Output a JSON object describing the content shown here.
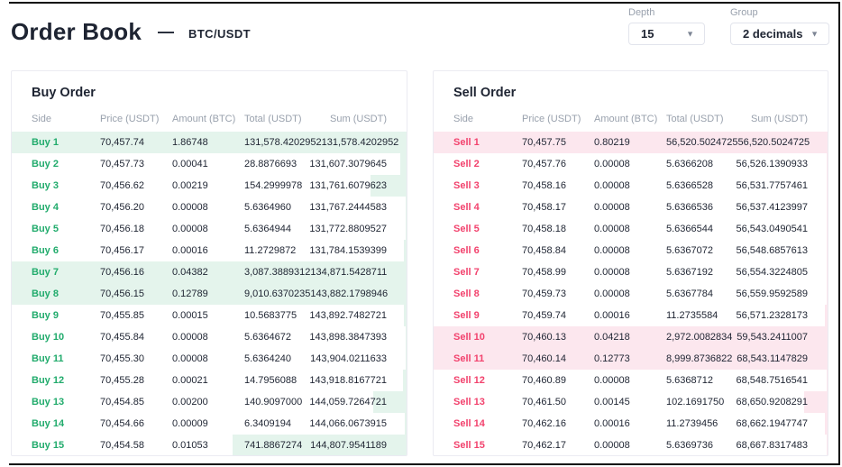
{
  "header": {
    "title": "Order Book",
    "separator": "—",
    "pair": "BTC/USDT"
  },
  "controls": {
    "depth": {
      "label": "Depth",
      "value": "15"
    },
    "group": {
      "label": "Group",
      "value": "2 decimals"
    }
  },
  "table_columns": [
    "Side",
    "Price (USDT)",
    "Amount (BTC)",
    "Total (USDT)",
    "Sum (USDT)"
  ],
  "buy_orders": {
    "title": "Buy Order",
    "rows": [
      {
        "side": "Buy 1",
        "price": "70,457.74",
        "amount": "1.86748",
        "total": "131,578.4202952",
        "sum": "131,578.4202952"
      },
      {
        "side": "Buy 2",
        "price": "70,457.73",
        "amount": "0.00041",
        "total": "28.8876693",
        "sum": "131,607.3079645"
      },
      {
        "side": "Buy 3",
        "price": "70,456.62",
        "amount": "0.00219",
        "total": "154.2999978",
        "sum": "131,761.6079623"
      },
      {
        "side": "Buy 4",
        "price": "70,456.20",
        "amount": "0.00008",
        "total": "5.6364960",
        "sum": "131,767.2444583"
      },
      {
        "side": "Buy 5",
        "price": "70,456.18",
        "amount": "0.00008",
        "total": "5.6364944",
        "sum": "131,772.8809527"
      },
      {
        "side": "Buy 6",
        "price": "70,456.17",
        "amount": "0.00016",
        "total": "11.2729872",
        "sum": "131,784.1539399"
      },
      {
        "side": "Buy 7",
        "price": "70,456.16",
        "amount": "0.04382",
        "total": "3,087.3889312",
        "sum": "134,871.5428711"
      },
      {
        "side": "Buy 8",
        "price": "70,456.15",
        "amount": "0.12789",
        "total": "9,010.6370235",
        "sum": "143,882.1798946"
      },
      {
        "side": "Buy 9",
        "price": "70,455.85",
        "amount": "0.00015",
        "total": "10.5683775",
        "sum": "143,892.7482721"
      },
      {
        "side": "Buy 10",
        "price": "70,455.84",
        "amount": "0.00008",
        "total": "5.6364672",
        "sum": "143,898.3847393"
      },
      {
        "side": "Buy 11",
        "price": "70,455.30",
        "amount": "0.00008",
        "total": "5.6364240",
        "sum": "143,904.0211633"
      },
      {
        "side": "Buy 12",
        "price": "70,455.28",
        "amount": "0.00021",
        "total": "14.7956088",
        "sum": "143,918.8167721"
      },
      {
        "side": "Buy 13",
        "price": "70,454.85",
        "amount": "0.00200",
        "total": "140.9097000",
        "sum": "144,059.7264721"
      },
      {
        "side": "Buy 14",
        "price": "70,454.66",
        "amount": "0.00009",
        "total": "6.3409194",
        "sum": "144,066.0673915"
      },
      {
        "side": "Buy 15",
        "price": "70,454.58",
        "amount": "0.01053",
        "total": "741.8867274",
        "sum": "144,807.9541189"
      }
    ]
  },
  "sell_orders": {
    "title": "Sell Order",
    "rows": [
      {
        "side": "Sell 1",
        "price": "70,457.75",
        "amount": "0.80219",
        "total": "56,520.5024725",
        "sum": "56,520.5024725"
      },
      {
        "side": "Sell 2",
        "price": "70,457.76",
        "amount": "0.00008",
        "total": "5.6366208",
        "sum": "56,526.1390933"
      },
      {
        "side": "Sell 3",
        "price": "70,458.16",
        "amount": "0.00008",
        "total": "5.6366528",
        "sum": "56,531.7757461"
      },
      {
        "side": "Sell 4",
        "price": "70,458.17",
        "amount": "0.00008",
        "total": "5.6366536",
        "sum": "56,537.4123997"
      },
      {
        "side": "Sell 5",
        "price": "70,458.18",
        "amount": "0.00008",
        "total": "5.6366544",
        "sum": "56,543.0490541"
      },
      {
        "side": "Sell 6",
        "price": "70,458.84",
        "amount": "0.00008",
        "total": "5.6367072",
        "sum": "56,548.6857613"
      },
      {
        "side": "Sell 7",
        "price": "70,458.99",
        "amount": "0.00008",
        "total": "5.6367192",
        "sum": "56,554.3224805"
      },
      {
        "side": "Sell 8",
        "price": "70,459.73",
        "amount": "0.00008",
        "total": "5.6367784",
        "sum": "56,559.9592589"
      },
      {
        "side": "Sell 9",
        "price": "70,459.74",
        "amount": "0.00016",
        "total": "11.2735584",
        "sum": "56,571.2328173"
      },
      {
        "side": "Sell 10",
        "price": "70,460.13",
        "amount": "0.04218",
        "total": "2,972.0082834",
        "sum": "59,543.2411007"
      },
      {
        "side": "Sell 11",
        "price": "70,460.14",
        "amount": "0.12773",
        "total": "8,999.8736822",
        "sum": "68,543.1147829"
      },
      {
        "side": "Sell 12",
        "price": "70,460.89",
        "amount": "0.00008",
        "total": "5.6368712",
        "sum": "68,548.7516541"
      },
      {
        "side": "Sell 13",
        "price": "70,461.50",
        "amount": "0.00145",
        "total": "102.1691750",
        "sum": "68,650.9208291"
      },
      {
        "side": "Sell 14",
        "price": "70,462.16",
        "amount": "0.00016",
        "total": "11.2739456",
        "sum": "68,662.1947747"
      },
      {
        "side": "Sell 15",
        "price": "70,462.17",
        "amount": "0.00008",
        "total": "5.6369736",
        "sum": "68,667.8317483"
      }
    ]
  },
  "colors": {
    "buy_text": "#21ab6c",
    "buy_highlight": "#e4f4ec",
    "sell_text": "#f2426d",
    "sell_highlight": "#fce7ee",
    "text_dark": "#1e2432",
    "text_muted": "#99a1ad",
    "border": "#ebebf2"
  },
  "depth_bar_scale_pct_per_btc": 4181.8
}
